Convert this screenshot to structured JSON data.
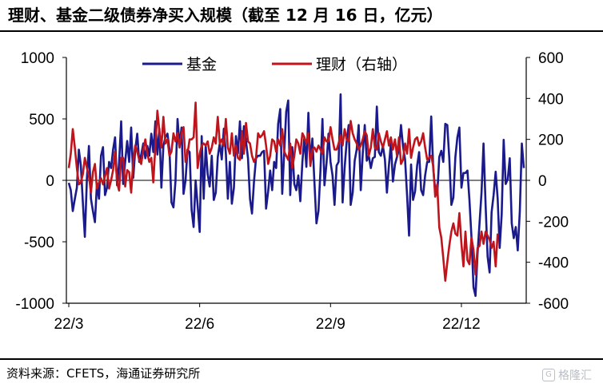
{
  "title": "理财、基金二级债券净买入规模（截至 12 月 16 日，亿元）",
  "source": "资料来源：CFETS，海通证券研究所",
  "watermark": "格隆汇",
  "colors": {
    "fund": "#1a1a8c",
    "wealth": "#c0141c",
    "axis": "#000000"
  },
  "chart_data": {
    "type": "line",
    "title": "",
    "x_tick_labels": [
      "22/3",
      "22/6",
      "22/9",
      "22/12"
    ],
    "left_axis": {
      "ylim": [
        -1000,
        1000
      ],
      "ticks": [
        -1000,
        -500,
        0,
        500,
        1000
      ]
    },
    "right_axis": {
      "ylim": [
        -600,
        600
      ],
      "ticks": [
        -600,
        -400,
        -200,
        0,
        200,
        400,
        600
      ]
    },
    "legend_placement": "top",
    "x_ticks_at_index": [
      0,
      65,
      130,
      195
    ],
    "series": [
      {
        "name": "基金",
        "axis": "left",
        "color": "#1a1a8c",
        "values": [
          -20,
          -80,
          -250,
          -150,
          -60,
          250,
          120,
          -180,
          -460,
          20,
          280,
          -150,
          -250,
          -340,
          -30,
          -150,
          200,
          270,
          -120,
          -60,
          150,
          100,
          250,
          350,
          -40,
          140,
          480,
          -30,
          150,
          320,
          150,
          430,
          20,
          250,
          380,
          150,
          210,
          300,
          180,
          280,
          200,
          380,
          230,
          480,
          210,
          420,
          -60,
          280,
          350,
          380,
          250,
          -180,
          -220,
          -10,
          500,
          280,
          430,
          -110,
          0,
          250,
          230,
          -240,
          -380,
          0,
          -200,
          -420,
          360,
          -150,
          280,
          50,
          -50,
          200,
          -160,
          -100,
          190,
          300,
          170,
          420,
          220,
          -150,
          150,
          -190,
          -60,
          360,
          220,
          480,
          180,
          440,
          320,
          180,
          -150,
          -270,
          -10,
          180,
          200,
          200,
          230,
          240,
          -230,
          -90,
          80,
          -80,
          150,
          100,
          460,
          580,
          -110,
          230,
          560,
          650,
          -120,
          270,
          -30,
          -80,
          40,
          -170,
          150,
          350,
          110,
          550,
          140,
          340,
          -20,
          -350,
          -250,
          80,
          500,
          -40,
          140,
          380,
          150,
          40,
          -200,
          120,
          150,
          700,
          -180,
          100,
          310,
          450,
          -200,
          -100,
          160,
          250,
          450,
          -80,
          220,
          450,
          160,
          200,
          100,
          180,
          190,
          600,
          230,
          200,
          280,
          170,
          -100,
          120,
          300,
          -10,
          130,
          190,
          250,
          450,
          280,
          170,
          -120,
          -450,
          130,
          -160,
          -90,
          120,
          230,
          -80,
          -120,
          40,
          150,
          150,
          520,
          100,
          -80,
          -120,
          190,
          240,
          150,
          460,
          450,
          180,
          -200,
          -140,
          190,
          350,
          430,
          -60,
          60,
          60,
          80,
          -160,
          -460,
          -870,
          -940,
          -600,
          -350,
          -100,
          300,
          -200,
          -620,
          -750,
          -260,
          -120,
          70,
          -150,
          -550,
          -280,
          330,
          -30,
          10,
          180,
          -350,
          -470,
          -380,
          -570,
          -250,
          300,
          100
        ]
      },
      {
        "name": "理财（右轴）",
        "axis": "right",
        "color": "#c0141c",
        "values": [
          60,
          130,
          250,
          160,
          60,
          -20,
          -10,
          30,
          110,
          60,
          20,
          -60,
          40,
          80,
          -40,
          -10,
          10,
          -20,
          20,
          60,
          -40,
          0,
          50,
          140,
          -10,
          -50,
          110,
          110,
          -30,
          50,
          40,
          -60,
          90,
          170,
          140,
          100,
          80,
          150,
          200,
          130,
          90,
          110,
          -10,
          170,
          340,
          240,
          160,
          310,
          180,
          200,
          120,
          140,
          230,
          190,
          230,
          160,
          230,
          260,
          90,
          130,
          200,
          200,
          210,
          380,
          60,
          130,
          170,
          180,
          170,
          190,
          130,
          160,
          210,
          180,
          310,
          180,
          200,
          170,
          300,
          160,
          130,
          230,
          120,
          170,
          110,
          100,
          240,
          130,
          280,
          190,
          180,
          120,
          90,
          110,
          230,
          210,
          220,
          240,
          170,
          80,
          120,
          200,
          190,
          140,
          200,
          170,
          250,
          140,
          120,
          100,
          180,
          60,
          120,
          200,
          180,
          130,
          230,
          210,
          180,
          230,
          70,
          150,
          160,
          140,
          170,
          150,
          130,
          210,
          190,
          190,
          260,
          200,
          150,
          150,
          180,
          220,
          170,
          250,
          200,
          190,
          290,
          230,
          200,
          180,
          150,
          170,
          200,
          240,
          220,
          120,
          160,
          250,
          160,
          150,
          230,
          190,
          160,
          200,
          240,
          170,
          210,
          150,
          200,
          120,
          210,
          80,
          100,
          180,
          130,
          250,
          110,
          160,
          200,
          210,
          170,
          190,
          230,
          160,
          100,
          110,
          120,
          70,
          -80,
          -20,
          -230,
          -280,
          -380,
          -490,
          -400,
          -320,
          -250,
          -210,
          -260,
          -270,
          -160,
          -310,
          -420,
          -250,
          -390,
          -410,
          -280,
          -340,
          -460,
          -330,
          -320,
          -250,
          -310,
          -250,
          -270,
          -290,
          -330,
          -300,
          -420,
          -260
        ]
      }
    ]
  }
}
